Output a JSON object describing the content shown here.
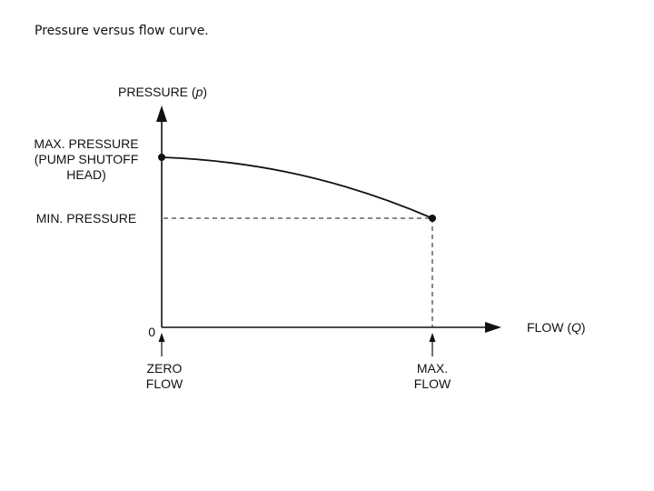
{
  "slide": {
    "title": "Pressure versus flow curve."
  },
  "diagram": {
    "y_axis": {
      "label_main": "PRESSURE (",
      "label_var": "p",
      "label_close": ")"
    },
    "x_axis": {
      "label_main": "FLOW (",
      "label_var": "Q",
      "label_close": ")"
    },
    "origin_label": "0",
    "max_pressure_label": {
      "line1": "MAX. PRESSURE",
      "line2": "(PUMP SHUTOFF",
      "line3": "HEAD)"
    },
    "min_pressure_label": "MIN. PRESSURE",
    "zero_flow_label": {
      "line1": "ZERO",
      "line2": "FLOW"
    },
    "max_flow_label": {
      "line1": "MAX.",
      "line2": "FLOW"
    },
    "line_color": "#111111"
  }
}
